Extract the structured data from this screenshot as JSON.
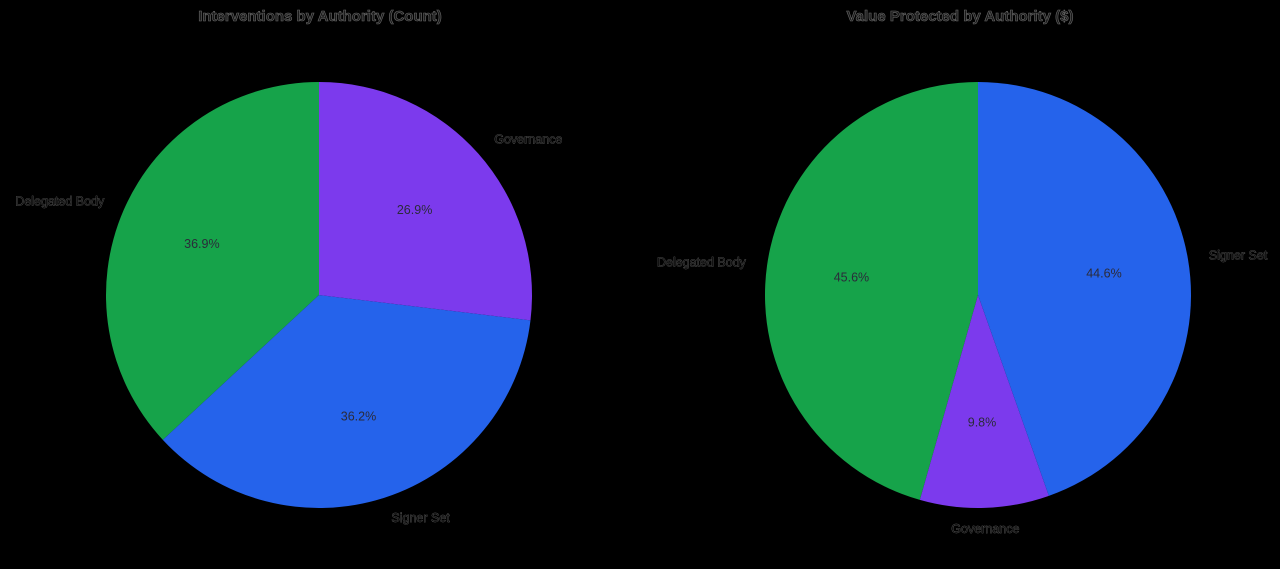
{
  "colors": {
    "background": "#000000",
    "delegated_body": "#16a34a",
    "signer_set": "#2563eb",
    "governance": "#7c3aed"
  },
  "chart_data": [
    {
      "type": "pie",
      "title": "Interventions by Authority (Count)",
      "start_angle": 90,
      "counterclockwise": true,
      "categories": [
        "Delegated Body",
        "Signer Set",
        "Governance"
      ],
      "values": [
        36.9,
        36.2,
        26.9
      ],
      "labels": [
        "36.9%",
        "36.2%",
        "26.9%"
      ],
      "colors": [
        "#16a34a",
        "#2563eb",
        "#7c3aed"
      ],
      "label_colors": [
        "#3f6b4f",
        "#6b6b6b",
        "#7a5cb0"
      ]
    },
    {
      "type": "pie",
      "title": "Value Protected by Authority ($)",
      "start_angle": 90,
      "counterclockwise": true,
      "categories": [
        "Delegated Body",
        "Governance",
        "Signer Set"
      ],
      "values": [
        45.6,
        9.8,
        44.6
      ],
      "labels": [
        "45.6%",
        "9.8%",
        "44.6%"
      ],
      "colors": [
        "#16a34a",
        "#7c3aed",
        "#2563eb"
      ],
      "label_colors": [
        "#3f6b4f",
        "#7a5cb0",
        "#6b6b6b"
      ]
    }
  ]
}
